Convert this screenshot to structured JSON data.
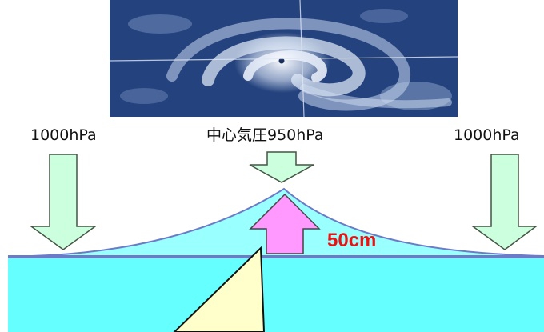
{
  "labels": {
    "left_pressure": "1000hPa",
    "center_pressure": "中心気圧950hPa",
    "right_pressure": "1000hPa",
    "surge_height": "50cm"
  },
  "colors": {
    "sea": "#66ffff",
    "surge_bulge": "#99ffff",
    "sea_surface_line": "#6b7bc7",
    "pressure_arrow_fill": "#ccffdd",
    "pressure_arrow_stroke": "#445544",
    "rise_arrow_fill": "#ff99ff",
    "rise_arrow_stroke": "#444444",
    "light_beam": "#ffffcc",
    "rise_label": "#ee1111",
    "satellite_ocean": "#1e3a72",
    "satellite_cloud": "#e6eefb"
  },
  "icons": {
    "satellite": "typhoon-satellite-image",
    "pressure_arrow": "down-arrow-icon",
    "rise_arrow": "up-arrow-icon"
  }
}
